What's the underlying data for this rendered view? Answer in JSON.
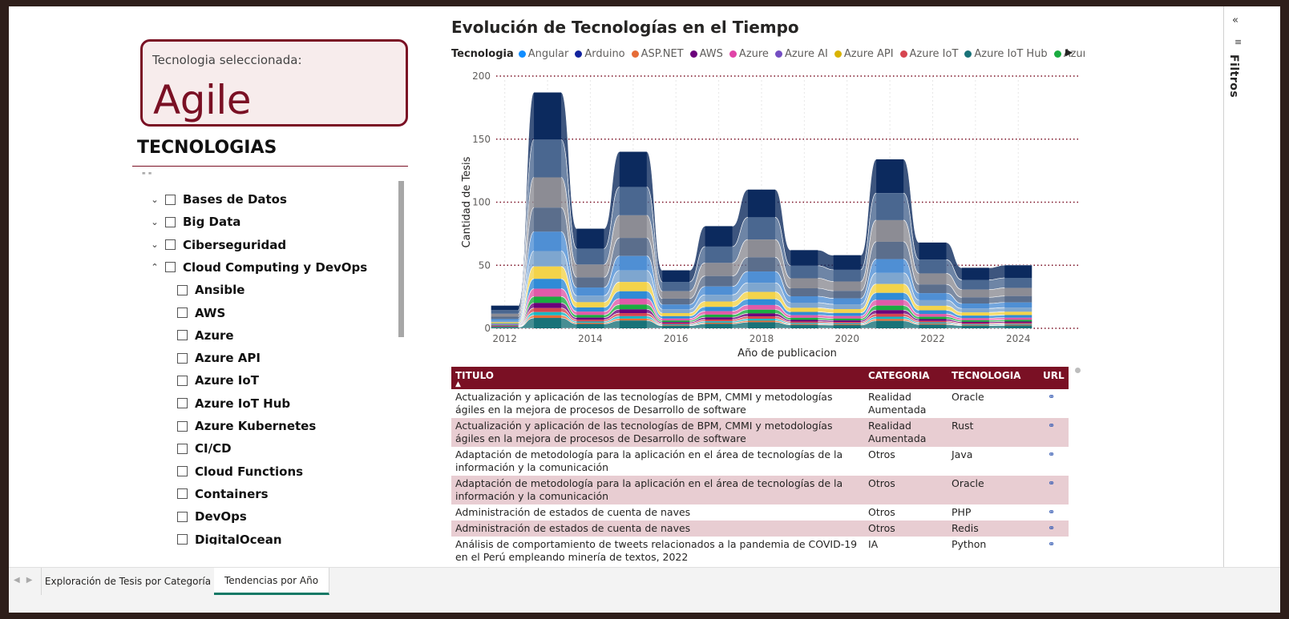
{
  "card": {
    "label": "Tecnologia seleccionada:",
    "value": "Agile"
  },
  "slicer": {
    "title": "TECNOLOGIAS",
    "dots": "\" \"",
    "items": [
      {
        "label": "Bases de Datos",
        "level": 0,
        "expand": "collapsed"
      },
      {
        "label": "Big Data",
        "level": 0,
        "expand": "collapsed"
      },
      {
        "label": "Ciberseguridad",
        "level": 0,
        "expand": "collapsed"
      },
      {
        "label": "Cloud Computing y DevOps",
        "level": 0,
        "expand": "expanded"
      },
      {
        "label": "Ansible",
        "level": 1,
        "expand": ""
      },
      {
        "label": "AWS",
        "level": 1,
        "expand": ""
      },
      {
        "label": "Azure",
        "level": 1,
        "expand": ""
      },
      {
        "label": "Azure API",
        "level": 1,
        "expand": ""
      },
      {
        "label": "Azure IoT",
        "level": 1,
        "expand": ""
      },
      {
        "label": "Azure IoT Hub",
        "level": 1,
        "expand": ""
      },
      {
        "label": "Azure Kubernetes",
        "level": 1,
        "expand": ""
      },
      {
        "label": "CI/CD",
        "level": 1,
        "expand": ""
      },
      {
        "label": "Cloud Functions",
        "level": 1,
        "expand": ""
      },
      {
        "label": "Containers",
        "level": 1,
        "expand": ""
      },
      {
        "label": "DevOps",
        "level": 1,
        "expand": ""
      },
      {
        "label": "DigitalOcean",
        "level": 1,
        "expand": ""
      }
    ]
  },
  "legend": {
    "title": "Tecnologia",
    "items": [
      {
        "label": "Angular",
        "color": "#118dff"
      },
      {
        "label": "Arduino",
        "color": "#12239e"
      },
      {
        "label": "ASP.NET",
        "color": "#e66c37"
      },
      {
        "label": "AWS",
        "color": "#6b007b"
      },
      {
        "label": "Azure",
        "color": "#e044a7"
      },
      {
        "label": "Azure AI",
        "color": "#744ec2"
      },
      {
        "label": "Azure API",
        "color": "#d9b300"
      },
      {
        "label": "Azure IoT",
        "color": "#d64550"
      },
      {
        "label": "Azure IoT Hub",
        "color": "#197278"
      },
      {
        "label": "Azure Kub...",
        "color": "#1aab40"
      }
    ]
  },
  "chart_data": {
    "type": "area",
    "title": "Evolución de Tecnologías en el Tiempo",
    "xlabel": "Año de publicacion",
    "ylabel": "Cantidad de Tesis",
    "x": [
      2012,
      2013,
      2014,
      2015,
      2016,
      2017,
      2018,
      2019,
      2020,
      2021,
      2022,
      2023,
      2024
    ],
    "xticks": [
      "2012",
      "2014",
      "2016",
      "2018",
      "2020",
      "2022",
      "2024"
    ],
    "yticks": [
      "0",
      "50",
      "100",
      "150",
      "200"
    ],
    "ylim": [
      0,
      200
    ],
    "grid": "dotted",
    "stacked": true,
    "ribbon": true,
    "total": [
      18,
      187,
      79,
      140,
      46,
      81,
      110,
      62,
      58,
      134,
      68,
      48,
      50
    ],
    "series_colors": [
      "#0c2a5e",
      "#4a6790",
      "#8c8c94",
      "#5b6e8c",
      "#4f8fd4",
      "#7ea6cf",
      "#f3d34a",
      "#2f8bd6",
      "#e05aa8",
      "#1aab40",
      "#6b007b",
      "#d64550",
      "#17b8c4",
      "#e66c37",
      "#197278"
    ]
  },
  "table": {
    "columns": [
      "TITULO",
      "CATEGORIA",
      "TECNOLOGIA",
      "URL"
    ],
    "sort_indicator": "▲",
    "rows": [
      {
        "titulo": "Actualización y aplicación de las tecnologías de BPM, CMMI y metodologías ágiles en la mejora de procesos de Desarrollo de software",
        "categoria": "Realidad Aumentada",
        "tecnologia": "Oracle",
        "url": "link-icon"
      },
      {
        "titulo": "Actualización y aplicación de las tecnologías de BPM, CMMI y metodologías ágiles en la mejora de procesos de Desarrollo de software",
        "categoria": "Realidad Aumentada",
        "tecnologia": "Rust",
        "url": "link-icon"
      },
      {
        "titulo": "Adaptación de metodología para la aplicación en el área de tecnologías de la información y la comunicación",
        "categoria": "Otros",
        "tecnologia": "Java",
        "url": "link-icon"
      },
      {
        "titulo": "Adaptación de metodología para la aplicación en el área de tecnologías de la información y la comunicación",
        "categoria": "Otros",
        "tecnologia": "Oracle",
        "url": "link-icon"
      },
      {
        "titulo": "Administración de estados de cuenta de naves",
        "categoria": "Otros",
        "tecnologia": "PHP",
        "url": "link-icon"
      },
      {
        "titulo": "Administración de estados de cuenta de naves",
        "categoria": "Otros",
        "tecnologia": "Redis",
        "url": "link-icon"
      },
      {
        "titulo": "Análisis de comportamiento de tweets relacionados a la pandemia de COVID-19 en el Perú empleando minería de textos, 2022",
        "categoria": "IA",
        "tecnologia": "Python",
        "url": "link-icon"
      }
    ]
  },
  "filters": {
    "label": "Filtros",
    "collapse_icon": "«",
    "filter_icon": "filter-icon"
  },
  "tabs": [
    {
      "label": "Exploración de Tesis por Categoría",
      "active": false
    },
    {
      "label": "Tendencias por Año",
      "active": true
    }
  ]
}
